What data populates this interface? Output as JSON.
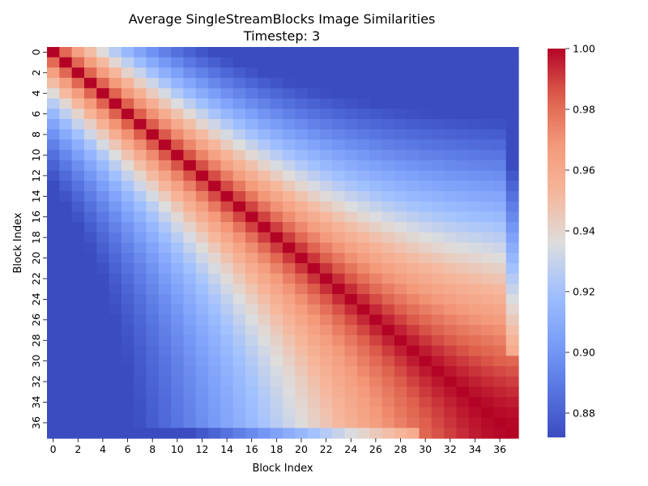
{
  "chart_data": {
    "type": "heatmap",
    "title": "Average SingleStreamBlocks Image Similarities",
    "subtitle": "Timestep: 3",
    "xlabel": "Block Index",
    "ylabel": "Block Index",
    "n": 38,
    "x_tick_labels": [
      "0",
      "2",
      "4",
      "6",
      "8",
      "10",
      "12",
      "14",
      "16",
      "18",
      "20",
      "22",
      "24",
      "26",
      "28",
      "30",
      "32",
      "34",
      "36"
    ],
    "y_tick_labels": [
      "0",
      "2",
      "4",
      "6",
      "8",
      "10",
      "12",
      "14",
      "16",
      "18",
      "20",
      "22",
      "24",
      "26",
      "28",
      "30",
      "32",
      "34",
      "36"
    ],
    "colormap": "coolwarm",
    "color_range": [
      0.872,
      1.0
    ],
    "colorbar_ticks": [
      "1.00",
      "0.98",
      "0.96",
      "0.94",
      "0.92",
      "0.90",
      "0.88"
    ],
    "value_model": "similarity(i,j) = 1 - (1 - min(i,j)/37) * (1 - exp(-|i-j|/8)) * 0.16 - 0.02 * [max(i,j)=37 and min(i,j)<30]; diagonal = 1.00; approximate reading of the color field"
  }
}
